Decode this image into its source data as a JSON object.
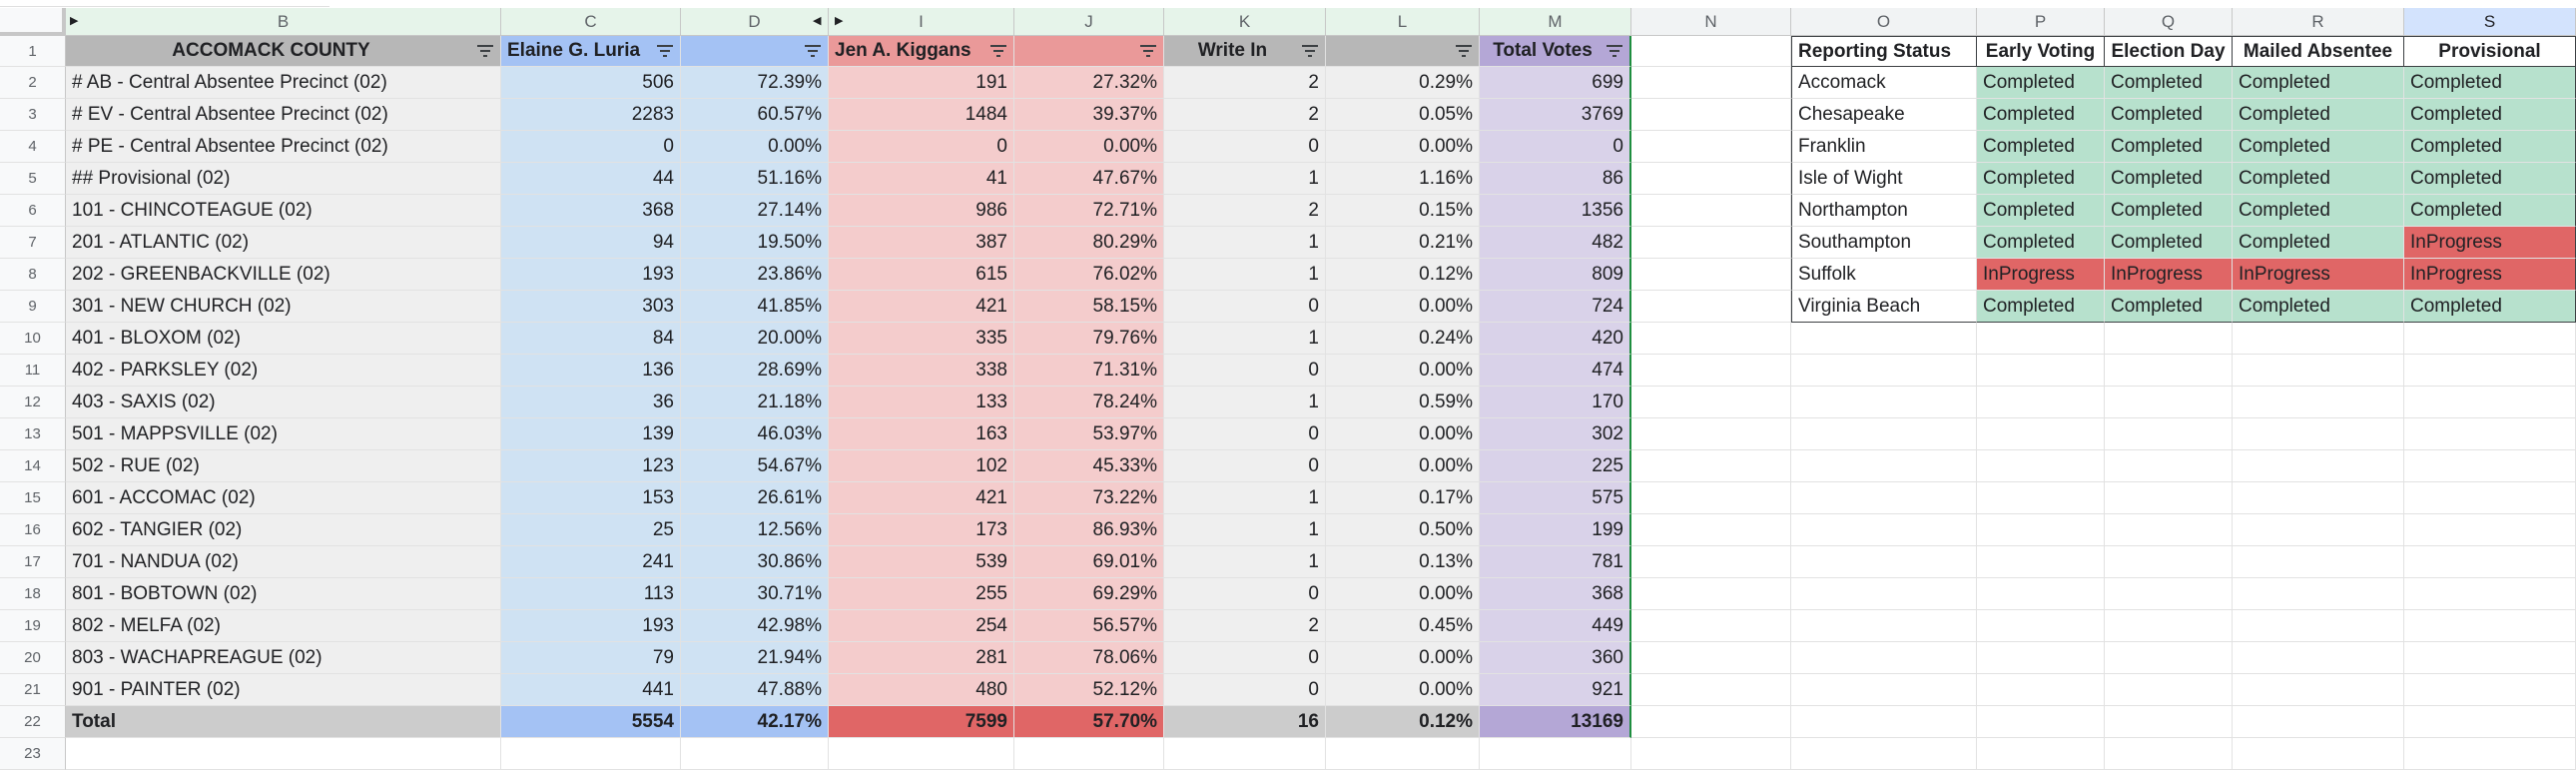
{
  "colors": {
    "grey": "#efefef",
    "grey_header": "#b7b7b7",
    "grey_total": "#cccccc",
    "blue": "#cfe2f3",
    "blue_header": "#a4c2f4",
    "red": "#f4cccc",
    "red_header": "#ea9999",
    "red_total": "#e06666",
    "purple": "#d9d2e9",
    "purple_header": "#b4a7d6",
    "completed": "#b7e1cd",
    "inprogress": "#e06666"
  },
  "columns": [
    "B",
    "C",
    "D",
    "I",
    "J",
    "K",
    "L",
    "M",
    "N",
    "O",
    "P",
    "Q",
    "R",
    "S"
  ],
  "row_numbers": [
    "1",
    "2",
    "3",
    "4",
    "5",
    "6",
    "7",
    "8",
    "9",
    "10",
    "11",
    "12",
    "13",
    "14",
    "15",
    "16",
    "17",
    "18",
    "19",
    "20",
    "21",
    "22",
    "23"
  ],
  "results": {
    "headers": [
      "ACCOMACK COUNTY",
      "Elaine G. Luria",
      "",
      "Jen A. Kiggans",
      "",
      "Write In",
      "",
      "Total Votes"
    ],
    "rows": [
      [
        "# AB - Central Absentee Precinct (02)",
        "506",
        "72.39%",
        "191",
        "27.32%",
        "2",
        "0.29%",
        "699"
      ],
      [
        "# EV - Central Absentee Precinct (02)",
        "2283",
        "60.57%",
        "1484",
        "39.37%",
        "2",
        "0.05%",
        "3769"
      ],
      [
        "# PE - Central Absentee Precinct (02)",
        "0",
        "0.00%",
        "0",
        "0.00%",
        "0",
        "0.00%",
        "0"
      ],
      [
        "## Provisional (02)",
        "44",
        "51.16%",
        "41",
        "47.67%",
        "1",
        "1.16%",
        "86"
      ],
      [
        "101 - CHINCOTEAGUE (02)",
        "368",
        "27.14%",
        "986",
        "72.71%",
        "2",
        "0.15%",
        "1356"
      ],
      [
        "201 - ATLANTIC (02)",
        "94",
        "19.50%",
        "387",
        "80.29%",
        "1",
        "0.21%",
        "482"
      ],
      [
        "202 - GREENBACKVILLE (02)",
        "193",
        "23.86%",
        "615",
        "76.02%",
        "1",
        "0.12%",
        "809"
      ],
      [
        "301 - NEW CHURCH (02)",
        "303",
        "41.85%",
        "421",
        "58.15%",
        "0",
        "0.00%",
        "724"
      ],
      [
        "401 - BLOXOM (02)",
        "84",
        "20.00%",
        "335",
        "79.76%",
        "1",
        "0.24%",
        "420"
      ],
      [
        "402 - PARKSLEY (02)",
        "136",
        "28.69%",
        "338",
        "71.31%",
        "0",
        "0.00%",
        "474"
      ],
      [
        "403 - SAXIS (02)",
        "36",
        "21.18%",
        "133",
        "78.24%",
        "1",
        "0.59%",
        "170"
      ],
      [
        "501 - MAPPSVILLE (02)",
        "139",
        "46.03%",
        "163",
        "53.97%",
        "0",
        "0.00%",
        "302"
      ],
      [
        "502 - RUE (02)",
        "123",
        "54.67%",
        "102",
        "45.33%",
        "0",
        "0.00%",
        "225"
      ],
      [
        "601 - ACCOMAC (02)",
        "153",
        "26.61%",
        "421",
        "73.22%",
        "1",
        "0.17%",
        "575"
      ],
      [
        "602 - TANGIER (02)",
        "25",
        "12.56%",
        "173",
        "86.93%",
        "1",
        "0.50%",
        "199"
      ],
      [
        "701 - NANDUA (02)",
        "241",
        "30.86%",
        "539",
        "69.01%",
        "1",
        "0.13%",
        "781"
      ],
      [
        "801 - BOBTOWN (02)",
        "113",
        "30.71%",
        "255",
        "69.29%",
        "0",
        "0.00%",
        "368"
      ],
      [
        "802 - MELFA (02)",
        "193",
        "42.98%",
        "254",
        "56.57%",
        "2",
        "0.45%",
        "449"
      ],
      [
        "803 - WACHAPREAGUE (02)",
        "79",
        "21.94%",
        "281",
        "78.06%",
        "0",
        "0.00%",
        "360"
      ],
      [
        "901 - PAINTER (02)",
        "441",
        "47.88%",
        "480",
        "52.12%",
        "0",
        "0.00%",
        "921"
      ]
    ],
    "total": [
      "Total",
      "5554",
      "42.17%",
      "7599",
      "57.70%",
      "16",
      "0.12%",
      "13169"
    ]
  },
  "status": {
    "headers": [
      "Reporting Status",
      "Early Voting",
      "Election Day",
      "Mailed Absentee",
      "Provisional"
    ],
    "rows": [
      [
        "Accomack",
        "Completed",
        "Completed",
        "Completed",
        "Completed"
      ],
      [
        "Chesapeake",
        "Completed",
        "Completed",
        "Completed",
        "Completed"
      ],
      [
        "Franklin",
        "Completed",
        "Completed",
        "Completed",
        "Completed"
      ],
      [
        "Isle of Wight",
        "Completed",
        "Completed",
        "Completed",
        "Completed"
      ],
      [
        "Northampton",
        "Completed",
        "Completed",
        "Completed",
        "Completed"
      ],
      [
        "Southampton",
        "Completed",
        "Completed",
        "Completed",
        "InProgress"
      ],
      [
        "Suffolk",
        "InProgress",
        "InProgress",
        "InProgress",
        "InProgress"
      ],
      [
        "Virginia Beach",
        "Completed",
        "Completed",
        "Completed",
        "Completed"
      ]
    ]
  }
}
